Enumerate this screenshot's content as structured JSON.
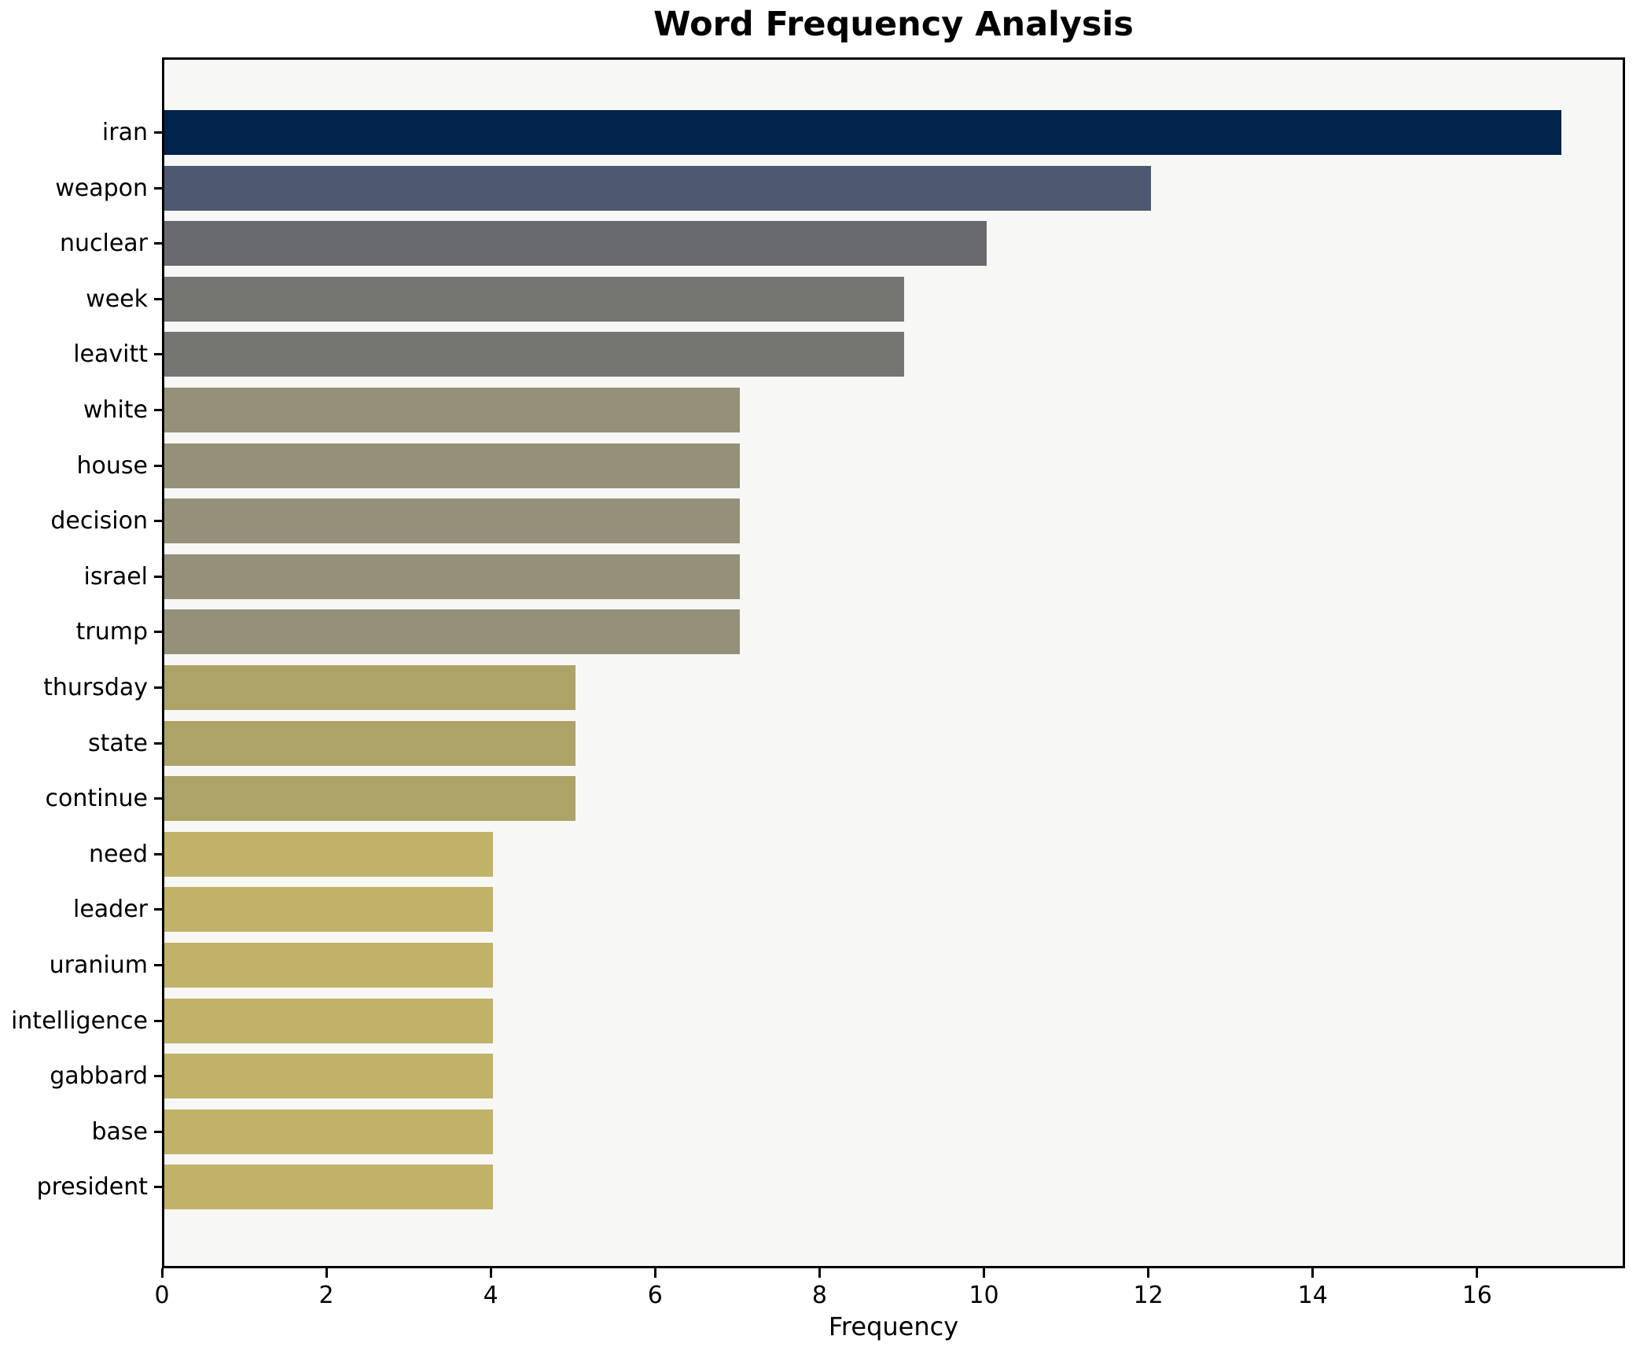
{
  "chart_data": {
    "type": "bar",
    "orientation": "horizontal",
    "title": "Word Frequency Analysis",
    "xlabel": "Frequency",
    "ylabel": "",
    "categories": [
      "iran",
      "weapon",
      "nuclear",
      "week",
      "leavitt",
      "white",
      "house",
      "decision",
      "israel",
      "trump",
      "thursday",
      "state",
      "continue",
      "need",
      "leader",
      "uranium",
      "intelligence",
      "gabbard",
      "base",
      "president"
    ],
    "values": [
      17,
      12,
      10,
      9,
      9,
      7,
      7,
      7,
      7,
      7,
      5,
      5,
      5,
      4,
      4,
      4,
      4,
      4,
      4,
      4
    ],
    "bar_colors": [
      "#02234c",
      "#4e5870",
      "#696a70",
      "#757572",
      "#757572",
      "#94907a",
      "#94907a",
      "#94907a",
      "#94907a",
      "#94907a",
      "#ada366",
      "#ada366",
      "#ada366",
      "#c0b268",
      "#c0b268",
      "#c0b268",
      "#c0b268",
      "#c0b268",
      "#c0b268",
      "#c0b268"
    ],
    "xticks": [
      0,
      2,
      4,
      6,
      8,
      10,
      12,
      14,
      16
    ],
    "xlim": [
      0,
      17.8
    ],
    "grid": false,
    "legend": "none",
    "plot_background": "#f7f7f6",
    "figure_background": "#ffffff",
    "spine_color": "#000000"
  }
}
